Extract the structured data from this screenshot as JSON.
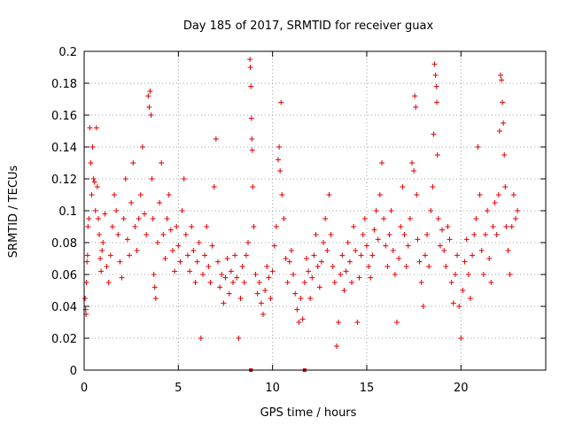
{
  "chart_data": {
    "type": "scatter",
    "title": "Day 185 of 2017, SRMTID for receiver guax",
    "xlabel": "GPS time / hours",
    "ylabel": "SRMTID / TECUs",
    "xlim": [
      0,
      24.5
    ],
    "ylim": [
      0,
      0.2
    ],
    "x_ticks": [
      0,
      5,
      10,
      15,
      20
    ],
    "x_tick_labels": [
      "0",
      "5",
      "10",
      "15",
      "20"
    ],
    "y_ticks": [
      0,
      0.02,
      0.04,
      0.06,
      0.08,
      0.1,
      0.12,
      0.14,
      0.16,
      0.18,
      0.2
    ],
    "y_tick_labels": [
      "0",
      "0.02",
      "0.04",
      "0.06",
      "0.08",
      "0.1",
      "0.12",
      "0.14",
      "0.16",
      "0.18",
      "0.2"
    ],
    "grid": true,
    "marker": "plus",
    "color": "#e00000",
    "gap_markers_x": [
      8.85,
      11.7
    ],
    "series": [
      {
        "name": "SRMTID",
        "points": [
          [
            0.05,
            0.045
          ],
          [
            0.08,
            0.038
          ],
          [
            0.1,
            0.035
          ],
          [
            0.12,
            0.055
          ],
          [
            0.15,
            0.068
          ],
          [
            0.18,
            0.072
          ],
          [
            0.2,
            0.09
          ],
          [
            0.25,
            0.095
          ],
          [
            0.3,
            0.152
          ],
          [
            0.35,
            0.13
          ],
          [
            0.4,
            0.11
          ],
          [
            0.45,
            0.14
          ],
          [
            0.5,
            0.12
          ],
          [
            0.55,
            0.118
          ],
          [
            0.6,
            0.1
          ],
          [
            0.65,
            0.152
          ],
          [
            0.7,
            0.115
          ],
          [
            0.75,
            0.095
          ],
          [
            0.8,
            0.085
          ],
          [
            0.85,
            0.07
          ],
          [
            0.9,
            0.062
          ],
          [
            0.95,
            0.075
          ],
          [
            1.0,
            0.08
          ],
          [
            1.1,
            0.098
          ],
          [
            1.2,
            0.065
          ],
          [
            1.3,
            0.055
          ],
          [
            1.4,
            0.072
          ],
          [
            1.5,
            0.09
          ],
          [
            1.6,
            0.11
          ],
          [
            1.7,
            0.1
          ],
          [
            1.8,
            0.085
          ],
          [
            1.9,
            0.068
          ],
          [
            2.0,
            0.058
          ],
          [
            2.1,
            0.095
          ],
          [
            2.2,
            0.12
          ],
          [
            2.3,
            0.082
          ],
          [
            2.4,
            0.072
          ],
          [
            2.5,
            0.105
          ],
          [
            2.6,
            0.13
          ],
          [
            2.7,
            0.09
          ],
          [
            2.8,
            0.075
          ],
          [
            2.9,
            0.095
          ],
          [
            3.0,
            0.11
          ],
          [
            3.1,
            0.14
          ],
          [
            3.2,
            0.098
          ],
          [
            3.3,
            0.085
          ],
          [
            3.4,
            0.172
          ],
          [
            3.45,
            0.165
          ],
          [
            3.5,
            0.175
          ],
          [
            3.55,
            0.16
          ],
          [
            3.6,
            0.12
          ],
          [
            3.65,
            0.095
          ],
          [
            3.7,
            0.06
          ],
          [
            3.75,
            0.052
          ],
          [
            3.8,
            0.045
          ],
          [
            3.9,
            0.08
          ],
          [
            4.0,
            0.105
          ],
          [
            4.1,
            0.13
          ],
          [
            4.2,
            0.085
          ],
          [
            4.3,
            0.07
          ],
          [
            4.4,
            0.095
          ],
          [
            4.5,
            0.11
          ],
          [
            4.6,
            0.088
          ],
          [
            4.7,
            0.075
          ],
          [
            4.8,
            0.062
          ],
          [
            4.9,
            0.09
          ],
          [
            5.0,
            0.078
          ],
          [
            5.1,
            0.068
          ],
          [
            5.2,
            0.1
          ],
          [
            5.3,
            0.12
          ],
          [
            5.4,
            0.085
          ],
          [
            5.5,
            0.072
          ],
          [
            5.6,
            0.062
          ],
          [
            5.7,
            0.09
          ],
          [
            5.8,
            0.075
          ],
          [
            5.9,
            0.055
          ],
          [
            6.0,
            0.068
          ],
          [
            6.1,
            0.08
          ],
          [
            6.2,
            0.02
          ],
          [
            6.3,
            0.06
          ],
          [
            6.4,
            0.072
          ],
          [
            6.5,
            0.09
          ],
          [
            6.6,
            0.065
          ],
          [
            6.7,
            0.055
          ],
          [
            6.8,
            0.078
          ],
          [
            6.9,
            0.115
          ],
          [
            7.0,
            0.145
          ],
          [
            7.1,
            0.068
          ],
          [
            7.2,
            0.052
          ],
          [
            7.3,
            0.06
          ],
          [
            7.4,
            0.042
          ],
          [
            7.5,
            0.058
          ],
          [
            7.6,
            0.07
          ],
          [
            7.7,
            0.048
          ],
          [
            7.8,
            0.062
          ],
          [
            7.9,
            0.055
          ],
          [
            8.0,
            0.072
          ],
          [
            8.1,
            0.058
          ],
          [
            8.2,
            0.02
          ],
          [
            8.3,
            0.045
          ],
          [
            8.4,
            0.065
          ],
          [
            8.5,
            0.055
          ],
          [
            8.6,
            0.072
          ],
          [
            8.7,
            0.08
          ],
          [
            8.8,
            0.195
          ],
          [
            8.82,
            0.19
          ],
          [
            8.85,
            0.178
          ],
          [
            8.88,
            0.158
          ],
          [
            8.9,
            0.145
          ],
          [
            8.92,
            0.138
          ],
          [
            8.95,
            0.115
          ],
          [
            9.0,
            0.09
          ],
          [
            9.1,
            0.06
          ],
          [
            9.2,
            0.048
          ],
          [
            9.3,
            0.055
          ],
          [
            9.4,
            0.042
          ],
          [
            9.5,
            0.035
          ],
          [
            9.6,
            0.05
          ],
          [
            9.7,
            0.065
          ],
          [
            9.8,
            0.058
          ],
          [
            9.9,
            0.045
          ],
          [
            10.0,
            0.062
          ],
          [
            10.1,
            0.078
          ],
          [
            10.2,
            0.09
          ],
          [
            10.3,
            0.132
          ],
          [
            10.35,
            0.14
          ],
          [
            10.4,
            0.125
          ],
          [
            10.45,
            0.168
          ],
          [
            10.5,
            0.11
          ],
          [
            10.6,
            0.095
          ],
          [
            10.7,
            0.07
          ],
          [
            10.8,
            0.055
          ],
          [
            10.9,
            0.068
          ],
          [
            11.0,
            0.075
          ],
          [
            11.1,
            0.06
          ],
          [
            11.2,
            0.048
          ],
          [
            11.3,
            0.038
          ],
          [
            11.4,
            0.03
          ],
          [
            11.5,
            0.045
          ],
          [
            11.6,
            0.032
          ],
          [
            11.7,
            0.055
          ],
          [
            11.8,
            0.07
          ],
          [
            11.9,
            0.062
          ],
          [
            12.0,
            0.045
          ],
          [
            12.1,
            0.058
          ],
          [
            12.2,
            0.072
          ],
          [
            12.3,
            0.085
          ],
          [
            12.4,
            0.065
          ],
          [
            12.5,
            0.052
          ],
          [
            12.6,
            0.068
          ],
          [
            12.7,
            0.08
          ],
          [
            12.8,
            0.095
          ],
          [
            12.9,
            0.075
          ],
          [
            13.0,
            0.11
          ],
          [
            13.1,
            0.085
          ],
          [
            13.2,
            0.065
          ],
          [
            13.3,
            0.055
          ],
          [
            13.4,
            0.015
          ],
          [
            13.5,
            0.03
          ],
          [
            13.6,
            0.06
          ],
          [
            13.7,
            0.072
          ],
          [
            13.8,
            0.05
          ],
          [
            13.9,
            0.062
          ],
          [
            14.0,
            0.08
          ],
          [
            14.1,
            0.068
          ],
          [
            14.2,
            0.055
          ],
          [
            14.3,
            0.09
          ],
          [
            14.4,
            0.075
          ],
          [
            14.5,
            0.03
          ],
          [
            14.6,
            0.058
          ],
          [
            14.7,
            0.072
          ],
          [
            14.8,
            0.085
          ],
          [
            14.9,
            0.095
          ],
          [
            15.0,
            0.078
          ],
          [
            15.1,
            0.065
          ],
          [
            15.2,
            0.058
          ],
          [
            15.3,
            0.072
          ],
          [
            15.4,
            0.088
          ],
          [
            15.5,
            0.1
          ],
          [
            15.6,
            0.082
          ],
          [
            15.7,
            0.11
          ],
          [
            15.8,
            0.13
          ],
          [
            15.9,
            0.095
          ],
          [
            16.0,
            0.078
          ],
          [
            16.1,
            0.065
          ],
          [
            16.2,
            0.085
          ],
          [
            16.3,
            0.1
          ],
          [
            16.4,
            0.075
          ],
          [
            16.5,
            0.06
          ],
          [
            16.6,
            0.03
          ],
          [
            16.7,
            0.07
          ],
          [
            16.8,
            0.09
          ],
          [
            16.9,
            0.115
          ],
          [
            17.0,
            0.085
          ],
          [
            17.1,
            0.065
          ],
          [
            17.2,
            0.078
          ],
          [
            17.3,
            0.095
          ],
          [
            17.4,
            0.13
          ],
          [
            17.5,
            0.125
          ],
          [
            17.55,
            0.172
          ],
          [
            17.6,
            0.165
          ],
          [
            17.65,
            0.11
          ],
          [
            17.7,
            0.082
          ],
          [
            17.8,
            0.068
          ],
          [
            17.9,
            0.055
          ],
          [
            18.0,
            0.04
          ],
          [
            18.1,
            0.072
          ],
          [
            18.2,
            0.085
          ],
          [
            18.3,
            0.065
          ],
          [
            18.4,
            0.1
          ],
          [
            18.5,
            0.115
          ],
          [
            18.55,
            0.148
          ],
          [
            18.6,
            0.192
          ],
          [
            18.65,
            0.185
          ],
          [
            18.7,
            0.178
          ],
          [
            18.72,
            0.168
          ],
          [
            18.75,
            0.135
          ],
          [
            18.8,
            0.095
          ],
          [
            18.9,
            0.078
          ],
          [
            19.0,
            0.088
          ],
          [
            19.1,
            0.075
          ],
          [
            19.2,
            0.065
          ],
          [
            19.3,
            0.09
          ],
          [
            19.4,
            0.082
          ],
          [
            19.5,
            0.055
          ],
          [
            19.6,
            0.042
          ],
          [
            19.7,
            0.06
          ],
          [
            19.8,
            0.072
          ],
          [
            19.9,
            0.04
          ],
          [
            20.0,
            0.02
          ],
          [
            20.1,
            0.05
          ],
          [
            20.2,
            0.068
          ],
          [
            20.3,
            0.082
          ],
          [
            20.4,
            0.06
          ],
          [
            20.5,
            0.045
          ],
          [
            20.6,
            0.072
          ],
          [
            20.7,
            0.085
          ],
          [
            20.8,
            0.095
          ],
          [
            20.9,
            0.14
          ],
          [
            21.0,
            0.11
          ],
          [
            21.1,
            0.075
          ],
          [
            21.2,
            0.06
          ],
          [
            21.3,
            0.085
          ],
          [
            21.4,
            0.1
          ],
          [
            21.5,
            0.07
          ],
          [
            21.6,
            0.055
          ],
          [
            21.7,
            0.09
          ],
          [
            21.8,
            0.105
          ],
          [
            21.9,
            0.085
          ],
          [
            22.0,
            0.11
          ],
          [
            22.05,
            0.15
          ],
          [
            22.1,
            0.185
          ],
          [
            22.15,
            0.182
          ],
          [
            22.2,
            0.168
          ],
          [
            22.25,
            0.155
          ],
          [
            22.3,
            0.135
          ],
          [
            22.35,
            0.115
          ],
          [
            22.4,
            0.09
          ],
          [
            22.5,
            0.075
          ],
          [
            22.6,
            0.06
          ],
          [
            22.7,
            0.09
          ],
          [
            22.8,
            0.11
          ],
          [
            22.9,
            0.095
          ],
          [
            23.0,
            0.1
          ]
        ]
      }
    ]
  }
}
